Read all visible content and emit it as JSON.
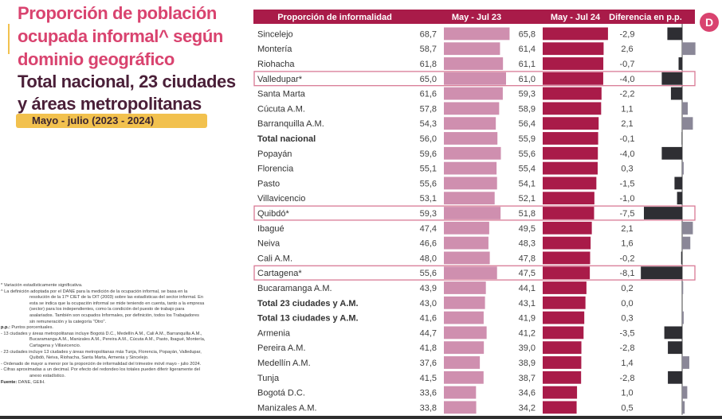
{
  "title": {
    "line1": "Proporción de población",
    "line2": "ocupada informal^ según",
    "line3": "dominio geográfico",
    "subtitle1": "Total nacional, 23 ciudades",
    "subtitle2": "y áreas metropolitanas",
    "period": "Mayo - julio (2023 - 2024)"
  },
  "logo": "D",
  "colors": {
    "header_bg": "#a91b49",
    "bar_2023": "#cf8faf",
    "bar_2024": "#a91b49",
    "diff_negative": "#2e2e33",
    "diff_positive": "#8a8797",
    "highlight_border": "#d87a95",
    "title_pink": "#d9436f",
    "title_dark": "#4a1f38",
    "period_bg": "#f2c14e"
  },
  "notes": [
    {
      "text": "* Variación estadísticamente significativa.",
      "indent": false
    },
    {
      "text": "^ La definición adoptada por el DANE para la medición de la ocupación informal, se basa en la",
      "indent": false
    },
    {
      "text": "resolución de la 17ª CIET de la OIT (2003) sobre las estadísticas del sector informal. En",
      "indent": true
    },
    {
      "text": "esta se indica que la ocupación informal se mide teniendo en cuenta, tanto a la empresa",
      "indent": true
    },
    {
      "text": "(sector) para los independientes, como la condición del puesto de trabajo para",
      "indent": true
    },
    {
      "text": "asalariados. También son ocupados Informales, por definición, todos los Trabajadores",
      "indent": true
    },
    {
      "text": "sin remuneración y la categoría \"Otro\".",
      "indent": true
    },
    {
      "label": "p.p.:",
      "text": " Puntos porcentuales.",
      "indent": false
    },
    {
      "text": "- 13 ciudades y áreas metropolitanas incluye Bogotá D.C., Medellín A.M., Cali A.M., Barranquilla A.M.,",
      "indent": false
    },
    {
      "text": "Bucaramanga A.M., Manizales A.M., Pereira A.M., Cúcuta A.M., Pasto, Ibagué, Montería,",
      "indent": true
    },
    {
      "text": "Cartagena y Villavicencio.",
      "indent": true
    },
    {
      "text": "- 23 ciudades incluye 13 ciudades y áreas metropolitanas más Tunja, Florencia, Popayán, Valledupar,",
      "indent": false
    },
    {
      "text": "Quibdó, Neiva, Riohacha, Santa Marta, Armenia y Sincelejo.",
      "indent": true
    },
    {
      "text": "- Ordenado de mayor a menor por la proporción de informalidad del trimestre móvil mayo - julio 2024.",
      "indent": false
    },
    {
      "text": "- Cifras aproximadas a un decimal. Por efecto del redondeo los totales pueden diferir ligeramente del",
      "indent": false
    },
    {
      "text": "anexo estadístico.",
      "indent": true
    },
    {
      "label": "Fuente:",
      "text": " DANE, GEIH.",
      "indent": false
    }
  ],
  "chart_data": {
    "type": "bar",
    "title": "Proporción de población ocupada informal según dominio geográfico",
    "columns": [
      "Proporción de informalidad",
      "May - Jul 23",
      "May - Jul 24",
      "Diferencia en p.p."
    ],
    "series": [
      {
        "name": "May - Jul 23",
        "values": [
          68.7,
          58.7,
          61.8,
          65.0,
          61.6,
          57.8,
          54.3,
          56.0,
          59.6,
          55.1,
          55.6,
          53.1,
          59.3,
          47.4,
          46.6,
          48.0,
          55.6,
          43.9,
          43.0,
          41.6,
          44.7,
          41.8,
          37.6,
          41.5,
          33.6,
          33.8
        ]
      },
      {
        "name": "May - Jul 24",
        "values": [
          65.8,
          61.4,
          61.1,
          61.0,
          59.3,
          58.9,
          56.4,
          55.9,
          55.6,
          55.4,
          54.1,
          52.1,
          51.8,
          49.5,
          48.3,
          47.8,
          47.5,
          44.1,
          43.1,
          41.9,
          41.2,
          39.0,
          38.9,
          38.7,
          34.6,
          34.2
        ]
      },
      {
        "name": "Diferencia en p.p.",
        "values": [
          -2.9,
          2.6,
          -0.7,
          -4.0,
          -2.2,
          1.1,
          2.1,
          -0.1,
          -4.0,
          0.3,
          -1.5,
          -1.0,
          -7.5,
          2.1,
          1.6,
          -0.2,
          -8.1,
          0.2,
          0.0,
          0.3,
          -3.5,
          -2.8,
          1.4,
          -2.8,
          1.0,
          0.5
        ]
      }
    ],
    "categories": [
      "Sincelejo",
      "Montería",
      "Riohacha",
      "Valledupar*",
      "Santa Marta",
      "Cúcuta A.M.",
      "Barranquilla A.M.",
      "Total nacional",
      "Popayán",
      "Florencia",
      "Pasto",
      "Villavicencio",
      "Quibdó*",
      "Ibagué",
      "Neiva",
      "Cali A.M.",
      "Cartagena*",
      "Bucaramanga A.M.",
      "Total 23 ciudades y A.M.",
      "Total 13 ciudades y A.M.",
      "Armenia",
      "Pereira A.M.",
      "Medellín A.M.",
      "Tunja",
      "Bogotá D.C.",
      "Manizales A.M."
    ],
    "labels_2023": [
      "68,7",
      "58,7",
      "61,8",
      "65,0",
      "61,6",
      "57,8",
      "54,3",
      "56,0",
      "59,6",
      "55,1",
      "55,6",
      "53,1",
      "59,3",
      "47,4",
      "46,6",
      "48,0",
      "55,6",
      "43,9",
      "43,0",
      "41,6",
      "44,7",
      "41,8",
      "37,6",
      "41,5",
      "33,6",
      "33,8"
    ],
    "labels_2024": [
      "65,8",
      "61,4",
      "61,1",
      "61,0",
      "59,3",
      "58,9",
      "56,4",
      "55,9",
      "55,6",
      "55,4",
      "54,1",
      "52,1",
      "51,8",
      "49,5",
      "48,3",
      "47,8",
      "47,5",
      "44,1",
      "43,1",
      "41,9",
      "41,2",
      "39,0",
      "38,9",
      "38,7",
      "34,6",
      "34,2"
    ],
    "labels_diff": [
      "-2,9",
      "2,6",
      "-0,7",
      "-4,0",
      "-2,2",
      "1,1",
      "2,1",
      "-0,1",
      "-4,0",
      "0,3",
      "-1,5",
      "-1,0",
      "-7,5",
      "2,1",
      "1,6",
      "-0,2",
      "-8,1",
      "0,2",
      "0,0",
      "0,3",
      "-3,5",
      "-2,8",
      "1,4",
      "-2,8",
      "1,0",
      "0,5"
    ],
    "bold_rows": [
      "Total nacional",
      "Total 23 ciudades y A.M.",
      "Total 13 ciudades y A.M."
    ],
    "highlighted_rows": [
      "Valledupar*",
      "Quibdó*",
      "Cartagena*"
    ],
    "xlabel": "",
    "ylabel": "",
    "units": "%",
    "grid": false,
    "legend": "none"
  }
}
